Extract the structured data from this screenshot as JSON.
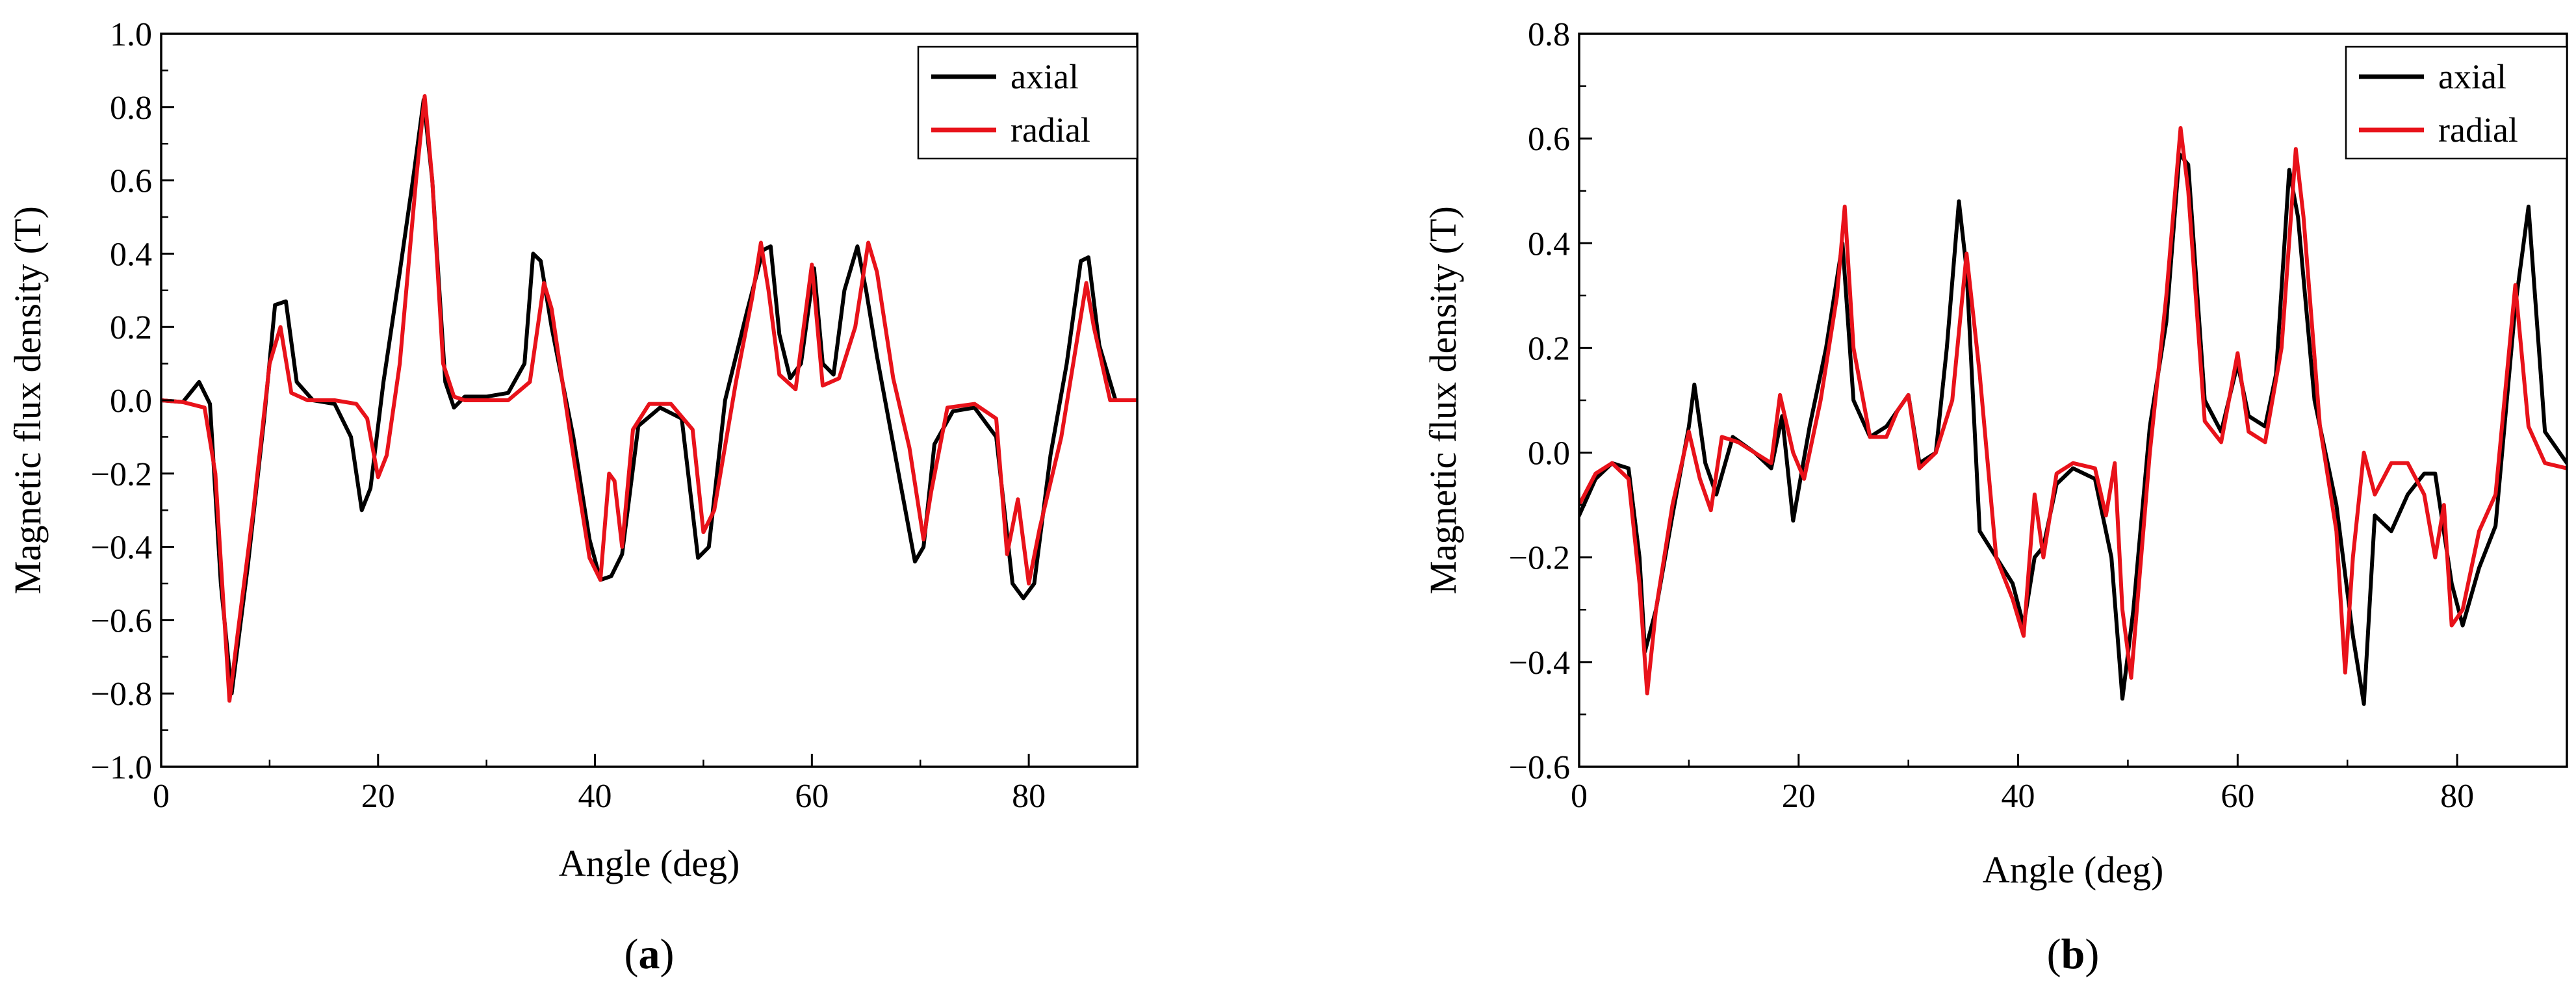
{
  "chart_data": [
    {
      "panel": "a",
      "type": "line",
      "xlabel": "Angle (deg)",
      "ylabel": "Magnetic flux density (T)",
      "xlim": [
        0,
        90
      ],
      "ylim": [
        -1.0,
        1.0
      ],
      "xticks": [
        0,
        20,
        40,
        60,
        80
      ],
      "yticks": [
        -1.0,
        -0.8,
        -0.6,
        -0.4,
        -0.2,
        0.0,
        0.2,
        0.4,
        0.6,
        0.8,
        1.0
      ],
      "ytick_labels": [
        "−1.0",
        "−0.8",
        "−0.6",
        "−0.4",
        "−0.2",
        "0.0",
        "0.2",
        "0.4",
        "0.6",
        "0.8",
        "1.0"
      ],
      "legend_position": "top-right",
      "caption_letter": "a",
      "series": [
        {
          "name": "axial",
          "color": "#000000",
          "x": [
            0,
            2,
            3.5,
            4.5,
            5.5,
            6.5,
            8,
            9.5,
            10.5,
            11.5,
            12.5,
            14,
            16,
            17.5,
            18.5,
            19.3,
            20.5,
            22,
            23.3,
            24.2,
            25,
            26.2,
            27,
            28,
            30,
            32,
            33.5,
            34.3,
            35,
            36,
            38,
            39.5,
            40.5,
            41.5,
            42.5,
            44,
            46,
            48,
            49.5,
            50.5,
            52,
            54,
            55.5,
            56.2,
            57,
            58,
            59,
            60.2,
            61,
            62,
            63,
            64.2,
            65,
            66,
            68,
            69.5,
            70.3,
            71.3,
            73,
            75,
            77,
            78.5,
            79.5,
            80.5,
            82,
            83.5,
            84.8,
            85.5,
            86.5,
            88,
            90
          ],
          "values": [
            0.0,
            -0.005,
            0.05,
            -0.01,
            -0.5,
            -0.8,
            -0.45,
            -0.05,
            0.26,
            0.27,
            0.05,
            0.0,
            -0.01,
            -0.1,
            -0.3,
            -0.24,
            0.05,
            0.35,
            0.62,
            0.82,
            0.6,
            0.05,
            -0.02,
            0.01,
            0.01,
            0.02,
            0.1,
            0.4,
            0.38,
            0.2,
            -0.1,
            -0.38,
            -0.49,
            -0.48,
            -0.42,
            -0.07,
            -0.02,
            -0.05,
            -0.43,
            -0.4,
            0.0,
            0.24,
            0.41,
            0.42,
            0.18,
            0.06,
            0.1,
            0.36,
            0.1,
            0.07,
            0.3,
            0.42,
            0.3,
            0.12,
            -0.2,
            -0.44,
            -0.4,
            -0.12,
            -0.03,
            -0.02,
            -0.1,
            -0.5,
            -0.54,
            -0.5,
            -0.15,
            0.1,
            0.38,
            0.39,
            0.15,
            0.0,
            0.0
          ]
        },
        {
          "name": "radial",
          "color": "#e8121a",
          "x": [
            0,
            2,
            4,
            5,
            6.3,
            7,
            8.5,
            10,
            11,
            12,
            13.5,
            16,
            18,
            19,
            20,
            20.8,
            22,
            23.5,
            24.3,
            25,
            26,
            27,
            28,
            30,
            32,
            34,
            35.3,
            36,
            38,
            39.5,
            40.5,
            41.3,
            41.8,
            42.5,
            43.5,
            45,
            47,
            49,
            50,
            51,
            53,
            54.5,
            55.3,
            56,
            57,
            58.5,
            60,
            61,
            62.5,
            64,
            65.2,
            66,
            67.5,
            69,
            70.3,
            71,
            72.5,
            75,
            77,
            78,
            79,
            80,
            81,
            83,
            85.3,
            86,
            87.5,
            90
          ],
          "values": [
            0.0,
            -0.005,
            -0.02,
            -0.2,
            -0.82,
            -0.65,
            -0.3,
            0.1,
            0.2,
            0.02,
            0.0,
            0.0,
            -0.01,
            -0.05,
            -0.21,
            -0.15,
            0.1,
            0.6,
            0.83,
            0.6,
            0.1,
            0.01,
            0.0,
            0.0,
            0.0,
            0.05,
            0.32,
            0.25,
            -0.15,
            -0.43,
            -0.49,
            -0.2,
            -0.22,
            -0.4,
            -0.08,
            -0.01,
            -0.01,
            -0.08,
            -0.36,
            -0.3,
            0.05,
            0.28,
            0.43,
            0.3,
            0.07,
            0.03,
            0.37,
            0.04,
            0.06,
            0.2,
            0.43,
            0.35,
            0.06,
            -0.13,
            -0.38,
            -0.25,
            -0.02,
            -0.01,
            -0.05,
            -0.42,
            -0.27,
            -0.5,
            -0.35,
            -0.1,
            0.32,
            0.2,
            0.0,
            0.0
          ]
        }
      ]
    },
    {
      "panel": "b",
      "type": "line",
      "xlabel": "Angle (deg)",
      "ylabel": "Magnetic flux density (T)",
      "xlim": [
        0,
        90
      ],
      "ylim": [
        -0.6,
        0.8
      ],
      "xticks": [
        0,
        20,
        40,
        60,
        80
      ],
      "yticks": [
        -0.6,
        -0.4,
        -0.2,
        0.0,
        0.2,
        0.4,
        0.6,
        0.8
      ],
      "ytick_labels": [
        "−0.6",
        "−0.4",
        "−0.2",
        "0.0",
        "0.2",
        "0.4",
        "0.6",
        "0.8"
      ],
      "legend_position": "top-right",
      "caption_letter": "b",
      "series": [
        {
          "name": "axial",
          "color": "#000000",
          "x": [
            0,
            1.5,
            3,
            4.5,
            5.5,
            6,
            7,
            8.5,
            10,
            10.5,
            11.5,
            12.5,
            14,
            16,
            17.5,
            18.5,
            19.5,
            21,
            22.5,
            24,
            25,
            26.5,
            28,
            29,
            30,
            31,
            32.5,
            33.5,
            34.6,
            35.3,
            36.5,
            38,
            39.5,
            40.5,
            41.5,
            42.3,
            43.5,
            45,
            47,
            48.5,
            49.5,
            50.5,
            52,
            53.5,
            54.7,
            55.5,
            57,
            58.5,
            60,
            61,
            62.5,
            63.5,
            64.7,
            65.5,
            67,
            69,
            70.5,
            71.5,
            72.5,
            74,
            75.5,
            77,
            78,
            79.5,
            80.5,
            82,
            83.5,
            85.3,
            86.5,
            88,
            90
          ],
          "values": [
            -0.12,
            -0.05,
            -0.02,
            -0.03,
            -0.2,
            -0.38,
            -0.3,
            -0.12,
            0.05,
            0.13,
            -0.02,
            -0.08,
            0.03,
            0.0,
            -0.03,
            0.07,
            -0.13,
            0.05,
            0.2,
            0.4,
            0.1,
            0.03,
            0.05,
            0.08,
            0.11,
            -0.02,
            0.0,
            0.2,
            0.48,
            0.35,
            -0.15,
            -0.2,
            -0.25,
            -0.33,
            -0.2,
            -0.18,
            -0.06,
            -0.03,
            -0.05,
            -0.2,
            -0.47,
            -0.3,
            0.05,
            0.25,
            0.57,
            0.55,
            0.1,
            0.04,
            0.17,
            0.07,
            0.05,
            0.15,
            0.54,
            0.45,
            0.1,
            -0.1,
            -0.35,
            -0.48,
            -0.12,
            -0.15,
            -0.08,
            -0.04,
            -0.04,
            -0.25,
            -0.33,
            -0.22,
            -0.14,
            0.28,
            0.47,
            0.04,
            -0.02
          ]
        },
        {
          "name": "radial",
          "color": "#e8121a",
          "x": [
            0,
            1.5,
            3,
            4.5,
            5.5,
            6.2,
            7,
            8.5,
            10,
            11,
            12,
            13,
            14.5,
            16,
            17.5,
            18.3,
            19.5,
            20.5,
            22,
            23.5,
            24.2,
            25,
            26.5,
            28,
            29,
            30,
            31,
            32.5,
            34,
            35.3,
            36.5,
            38,
            39.5,
            40.5,
            41.5,
            42.3,
            43.5,
            45,
            47,
            48,
            48.8,
            49.5,
            50.3,
            52,
            53.5,
            54.8,
            55.5,
            57,
            58.5,
            60,
            61,
            62.5,
            64,
            65.3,
            66,
            67.5,
            69,
            69.8,
            70.5,
            71.5,
            72.5,
            74,
            75.5,
            77,
            78,
            78.8,
            79.5,
            80.5,
            82,
            83.5,
            85.3,
            86.5,
            88,
            90
          ],
          "values": [
            -0.1,
            -0.04,
            -0.02,
            -0.05,
            -0.25,
            -0.46,
            -0.3,
            -0.1,
            0.04,
            -0.05,
            -0.11,
            0.03,
            0.02,
            0.0,
            -0.02,
            0.11,
            0.0,
            -0.05,
            0.1,
            0.3,
            0.47,
            0.2,
            0.03,
            0.03,
            0.08,
            0.11,
            -0.03,
            0.0,
            0.1,
            0.38,
            0.15,
            -0.2,
            -0.28,
            -0.35,
            -0.08,
            -0.2,
            -0.04,
            -0.02,
            -0.03,
            -0.12,
            -0.02,
            -0.3,
            -0.43,
            0.0,
            0.3,
            0.62,
            0.5,
            0.06,
            0.02,
            0.19,
            0.04,
            0.02,
            0.2,
            0.58,
            0.45,
            0.05,
            -0.15,
            -0.42,
            -0.2,
            0.0,
            -0.08,
            -0.02,
            -0.02,
            -0.08,
            -0.2,
            -0.1,
            -0.33,
            -0.3,
            -0.15,
            -0.08,
            0.32,
            0.05,
            -0.02,
            -0.03
          ]
        }
      ]
    }
  ]
}
